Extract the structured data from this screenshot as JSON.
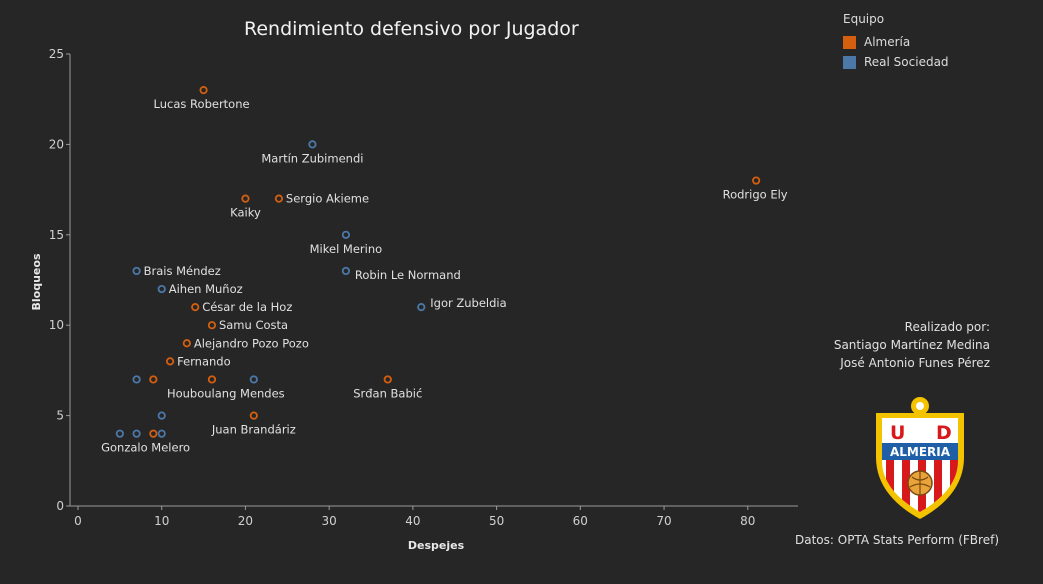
{
  "chart_data": {
    "type": "scatter",
    "title": "Rendimiento defensivo por Jugador",
    "xlabel": "Despejes",
    "ylabel": "Bloqueos",
    "xlim": [
      0,
      86
    ],
    "ylim": [
      0,
      25
    ],
    "xticks": [
      0,
      10,
      20,
      30,
      40,
      50,
      60,
      70,
      80
    ],
    "yticks": [
      0,
      5,
      10,
      15,
      20,
      25
    ],
    "grid": false,
    "legend": {
      "title": "Equipo",
      "placement": "top-right",
      "entries": [
        {
          "name": "Almería",
          "color": "#D45F0F"
        },
        {
          "name": "Real Sociedad",
          "color": "#4C78A8"
        }
      ]
    },
    "series": [
      {
        "name": "Almería",
        "color": "#D45F0F",
        "points": [
          {
            "x": 15,
            "y": 23,
            "label": "Lucas Robertone"
          },
          {
            "x": 81,
            "y": 18,
            "label": "Rodrigo Ely"
          },
          {
            "x": 20,
            "y": 17,
            "label": "Kaiky"
          },
          {
            "x": 24,
            "y": 17,
            "label": "Sergio Akieme"
          },
          {
            "x": 14,
            "y": 11,
            "label": "César de la Hoz"
          },
          {
            "x": 16,
            "y": 10,
            "label": "Samu Costa"
          },
          {
            "x": 13,
            "y": 9,
            "label": "Alejandro Pozo Pozo"
          },
          {
            "x": 11,
            "y": 8,
            "label": "Fernando"
          },
          {
            "x": 9,
            "y": 7,
            "label": ""
          },
          {
            "x": 16,
            "y": 7,
            "label": ""
          },
          {
            "x": 37,
            "y": 7,
            "label": "Srđan Babić"
          },
          {
            "x": 21,
            "y": 5,
            "label": "Juan Brandáriz"
          },
          {
            "x": 9,
            "y": 4,
            "label": ""
          }
        ]
      },
      {
        "name": "Real Sociedad",
        "color": "#4C78A8",
        "points": [
          {
            "x": 28,
            "y": 20,
            "label": "Martín Zubimendi"
          },
          {
            "x": 32,
            "y": 15,
            "label": "Mikel Merino"
          },
          {
            "x": 7,
            "y": 13,
            "label": "Brais Méndez"
          },
          {
            "x": 32,
            "y": 13,
            "label": "Robin Le Normand"
          },
          {
            "x": 10,
            "y": 12,
            "label": "Aihen Muñoz"
          },
          {
            "x": 41,
            "y": 11,
            "label": "Igor Zubeldia"
          },
          {
            "x": 7,
            "y": 7,
            "label": ""
          },
          {
            "x": 21,
            "y": 7,
            "label": "Houboulang Mendes"
          },
          {
            "x": 10,
            "y": 5,
            "label": ""
          },
          {
            "x": 5,
            "y": 4,
            "label": ""
          },
          {
            "x": 7,
            "y": 4,
            "label": "Gonzalo Melero"
          },
          {
            "x": 10,
            "y": 4,
            "label": ""
          }
        ]
      }
    ]
  },
  "credits": {
    "line1": "Realizado por:",
    "line2": "Santiago Martínez Medina",
    "line3": "José Antonio Funes Pérez"
  },
  "source": "Datos: OPTA Stats Perform (FBref)",
  "badge": {
    "top": "U D",
    "name": "ALMERIA",
    "colors": {
      "gold": "#F4C300",
      "red": "#D7191C",
      "blue": "#1F5FA8"
    }
  }
}
